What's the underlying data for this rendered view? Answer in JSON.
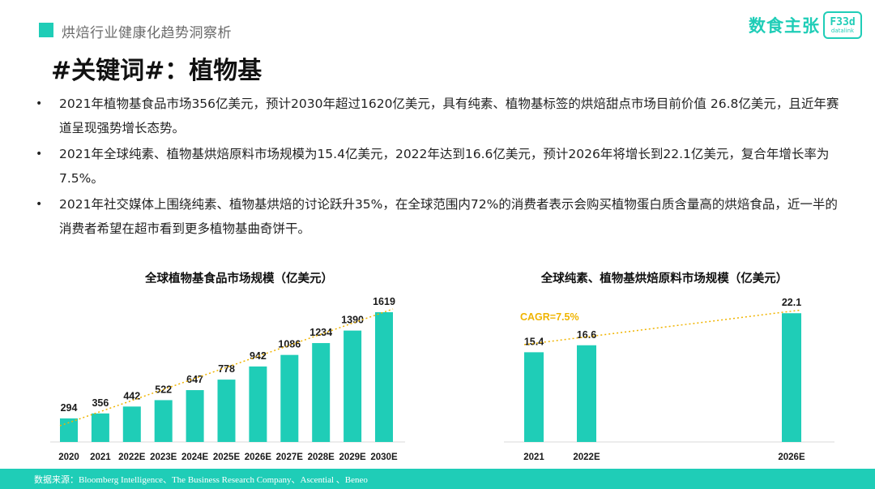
{
  "header": {
    "section": "烘焙行业健康化趋势洞察析"
  },
  "brand": {
    "name_cn": "数食主张",
    "badge_main": "F33d",
    "badge_sub": "datalink",
    "accent": "#1fcdb7"
  },
  "title": "#关键词#：植物基",
  "bullets": [
    {
      "marker": "•",
      "text": "2021年植物基食品市场356亿美元，预计2030年超过1620亿美元，具有纯素、植物基标签的烘焙甜点市场目前价值 26.8亿美元，且近年赛道呈现强势增长态势。"
    },
    {
      "marker": "•",
      "text": "2021年全球纯素、植物基烘焙原料市场规模为15.4亿美元，2022年达到16.6亿美元，预计2026年将增长到22.1亿美元，复合年增长率为7.5%。"
    },
    {
      "marker": "•",
      "text": "2021年社交媒体上围绕纯素、植物基烘焙的讨论跃升35%，在全球范围内72%的消费者表示会购买植物蛋白质含量高的烘焙食品，近一半的消费者希望在超市看到更多植物基曲奇饼干。"
    }
  ],
  "chart_data": [
    {
      "type": "bar",
      "title": "全球植物基食品市场规模（亿美元）",
      "categories": [
        "2020",
        "2021",
        "2022E",
        "2023E",
        "2024E",
        "2025E",
        "2026E",
        "2027E",
        "2028E",
        "2029E",
        "2030E"
      ],
      "values": [
        294,
        356,
        442,
        522,
        647,
        778,
        942,
        1086,
        1234,
        1390,
        1619
      ],
      "value_labels": [
        "294",
        "356",
        "442",
        "522",
        "647",
        "778",
        "942",
        "1086",
        "1234",
        "1390",
        "1619"
      ],
      "trendline": "dotted",
      "ylim": [
        0,
        1700
      ],
      "bar_color": "#1fcdb7",
      "trend_color": "#f0b400"
    },
    {
      "type": "bar",
      "title": "全球纯素、植物基烘焙原料市场规模（亿美元）",
      "categories": [
        "2021",
        "2022E",
        "2026E"
      ],
      "values": [
        15.4,
        16.6,
        22.1
      ],
      "value_labels": [
        "15.4",
        "16.6",
        "22.1"
      ],
      "annotation": "CAGR=7.5%",
      "trendline": "dotted",
      "ylim": [
        0,
        24.5
      ],
      "bar_color": "#1fcdb7",
      "trend_color": "#f0b400"
    }
  ],
  "footer": {
    "source": "数据来源：Bloomberg Intelligence、The Business Research Company、Ascential 、Beneo"
  }
}
